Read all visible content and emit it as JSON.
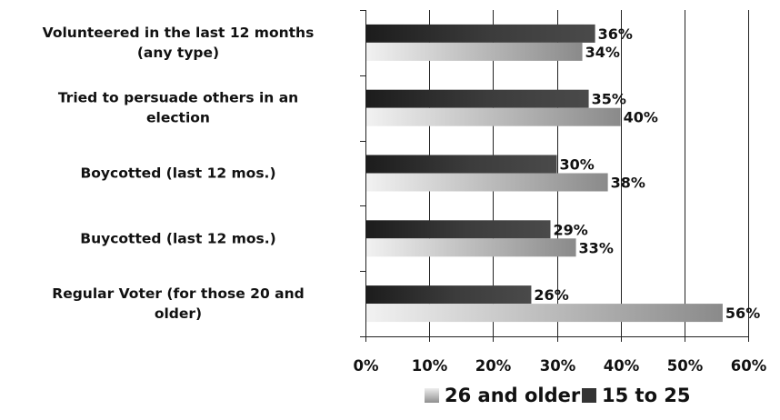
{
  "chart_data": {
    "type": "bar",
    "orientation": "horizontal",
    "categories": [
      [
        "Volunteered in the last 12 months",
        "(any type)"
      ],
      [
        "Tried to persuade others in an",
        "election"
      ],
      [
        "Boycotted (last 12 mos.)"
      ],
      [
        "Buycotted (last 12 mos.)"
      ],
      [
        "Regular Voter (for those 20 and",
        "older)"
      ]
    ],
    "series": [
      {
        "name": "15 to 25",
        "values": [
          36,
          35,
          30,
          29,
          26
        ],
        "labels": [
          "36%",
          "35%",
          "30%",
          "29%",
          "26%"
        ],
        "color": "#3a3a3a"
      },
      {
        "name": "26 and older",
        "values": [
          34,
          40,
          38,
          33,
          56
        ],
        "labels": [
          "34%",
          "40%",
          "38%",
          "33%",
          "56%"
        ],
        "color": "#b8b8b8"
      }
    ],
    "xlim": [
      0,
      60
    ],
    "xticks": [
      0,
      10,
      20,
      30,
      40,
      50,
      60
    ],
    "xtick_labels": [
      "0%",
      "10%",
      "20%",
      "30%",
      "40%",
      "50%",
      "60%"
    ],
    "grid": "vertical",
    "legend": {
      "position": "bottom",
      "entries": [
        "26 and older",
        "15 to 25"
      ]
    }
  }
}
